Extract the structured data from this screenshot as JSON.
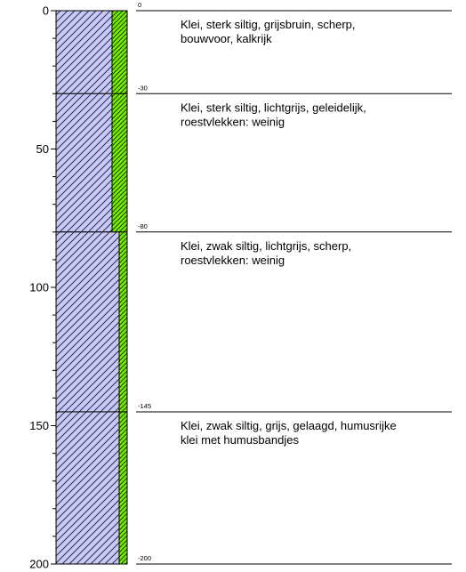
{
  "axis": {
    "ticks_labeled": [
      0,
      50,
      100,
      150,
      200
    ],
    "tick_step": 10,
    "max_depth": 200
  },
  "colors": {
    "clay": "#c8c8f5",
    "silt": "#77ee00",
    "line": "#000000"
  },
  "layers": [
    {
      "top": 0,
      "bottom": 30,
      "top_label": "0",
      "silt_fraction": "sterk",
      "description": [
        "Klei, sterk siltig, grijsbruin, scherp,",
        "bouwvoor, kalkrijk"
      ]
    },
    {
      "top": 30,
      "bottom": 80,
      "top_label": "-30",
      "silt_fraction": "sterk",
      "description": [
        "Klei, sterk siltig, lichtgrijs, geleidelijk,",
        "roestvlekken: weinig"
      ]
    },
    {
      "top": 80,
      "bottom": 145,
      "top_label": "-80",
      "silt_fraction": "zwak",
      "description": [
        "Klei, zwak siltig, lichtgrijs, scherp,",
        "roestvlekken: weinig"
      ]
    },
    {
      "top": 145,
      "bottom": 200,
      "top_label": "-145",
      "silt_fraction": "zwak",
      "description": [
        "Klei, zwak siltig, grijs, gelaagd, humusrijke",
        "klei met humusbandjes"
      ]
    }
  ],
  "bottom_label": "-200"
}
